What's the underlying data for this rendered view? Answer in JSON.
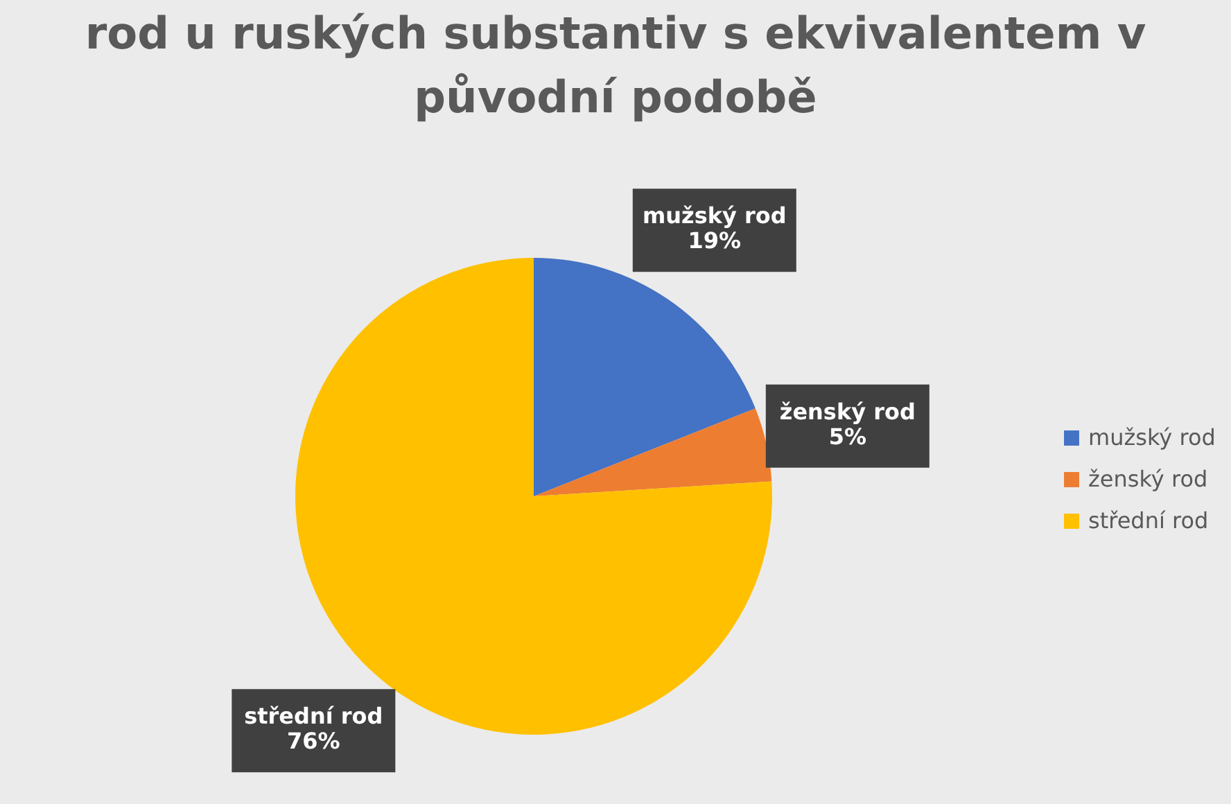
{
  "chart_data": {
    "type": "pie",
    "title": "rod u ruských substantiv s ekvivalentem v původní podobě",
    "categories": [
      "mužský rod",
      "ženský rod",
      "střední rod"
    ],
    "values": [
      19,
      5,
      76
    ],
    "colors": [
      "#4472c4",
      "#ed7d31",
      "#ffc000"
    ],
    "value_labels": [
      "19%",
      "5%",
      "76%"
    ],
    "legend": "right"
  }
}
